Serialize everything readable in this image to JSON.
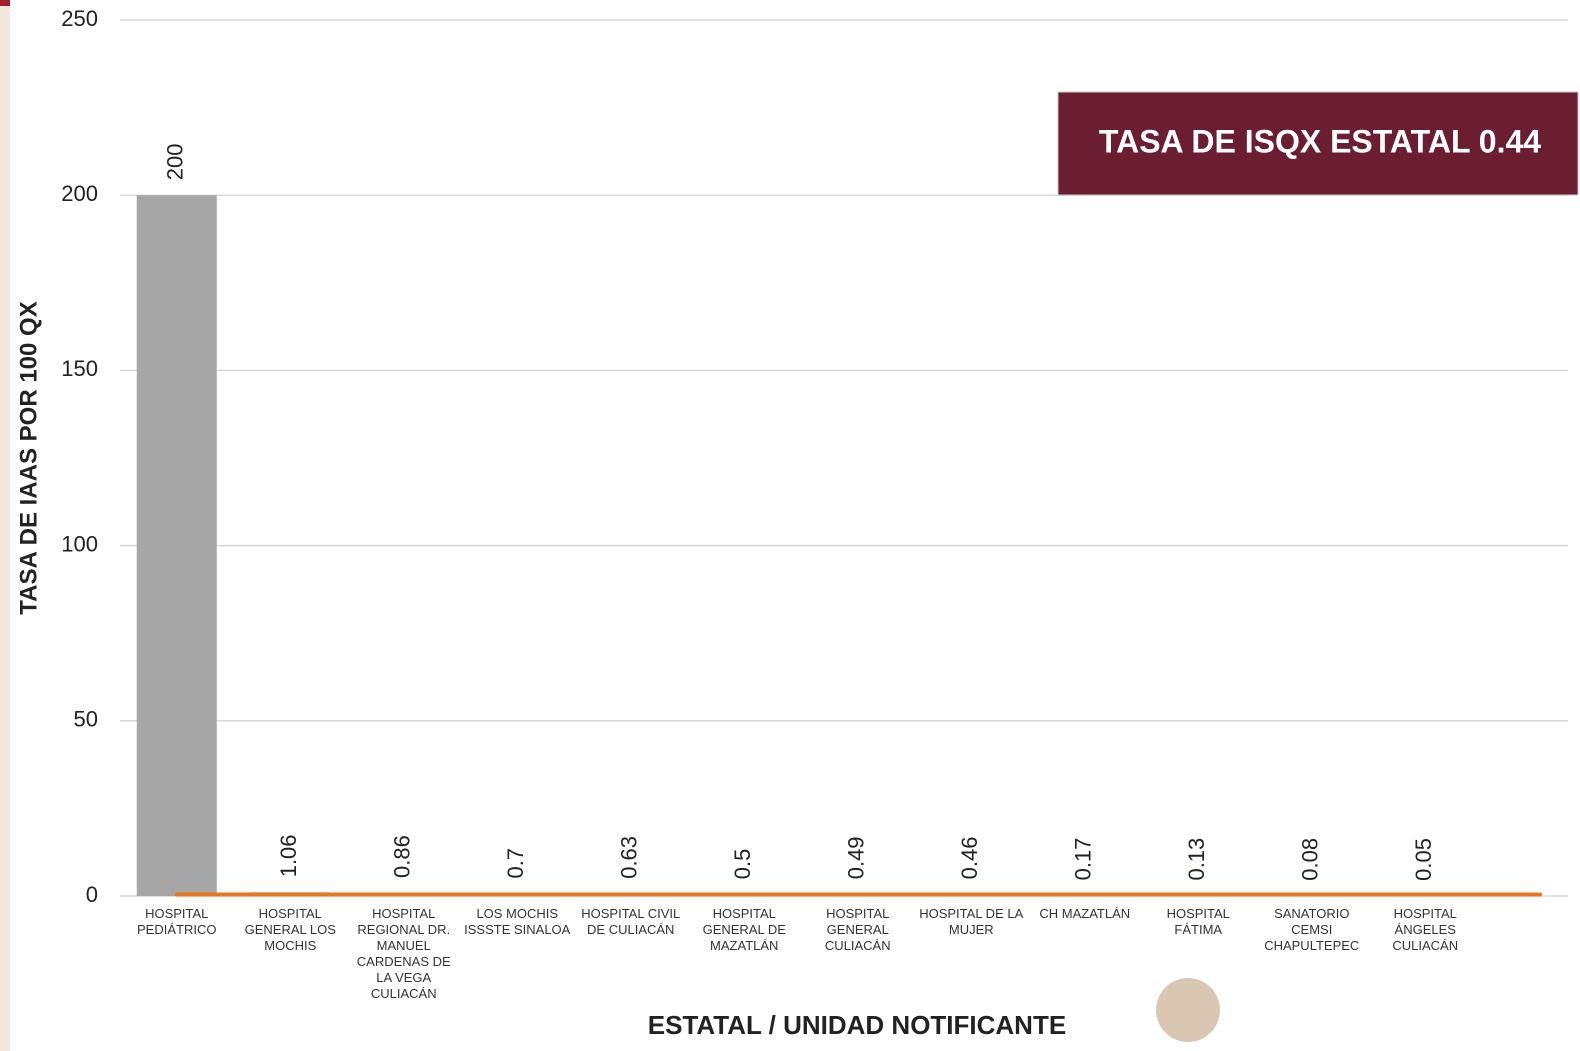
{
  "chart_data": {
    "type": "bar",
    "y_label": "TASA DE IAAS POR 100 QX",
    "x_label": "ESTATAL / UNIDAD NOTIFICANTE",
    "annotation": "TASA DE ISQX ESTATAL 0.44",
    "categories": [
      "HOSPITAL PEDIÁTRICO",
      "HOSPITAL GENERAL LOS MOCHIS",
      "HOSPITAL REGIONAL DR. MANUEL CARDENAS DE LA VEGA CULIACÁN",
      "LOS MOCHIS ISSSTE SINALOA",
      "HOSPITAL CIVIL DE CULIACÁN",
      "HOSPITAL GENERAL DE MAZATLÁN",
      "HOSPITAL GENERAL CULIACÁN",
      "HOSPITAL DE LA MUJER",
      "CH MAZATLÁN",
      "HOSPITAL FÁTIMA",
      "SANATORIO CEMSI CHAPULTEPEC",
      "HOSPITAL ÁNGELES CULIACÁN"
    ],
    "values": [
      200,
      1.06,
      0.86,
      0.7,
      0.63,
      0.5,
      0.49,
      0.46,
      0.17,
      0.13,
      0.08,
      0.05
    ],
    "color": "#a6a6a6",
    "reference_line": {
      "value": 0.44,
      "color": "#e87722"
    },
    "ylim": [
      0,
      250
    ],
    "yticks": [
      0,
      50,
      100,
      150,
      200,
      250
    ],
    "grid": true
  }
}
